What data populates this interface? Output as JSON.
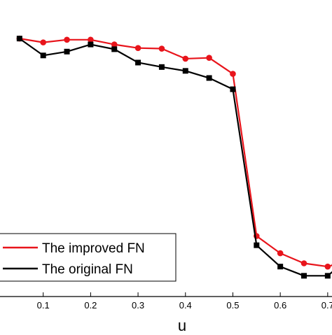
{
  "chart_data": {
    "type": "line",
    "xlabel": "u",
    "xlim": [
      0.0,
      0.715
    ],
    "ylim": [
      0.0,
      1.0
    ],
    "x_ticks": [
      "0.1",
      "0.2",
      "0.3",
      "0.4",
      "0.5",
      "0.6",
      "0.7"
    ],
    "series": [
      {
        "name": "The improved FN",
        "color": "#e8141b",
        "marker": "circle",
        "x": [
          0.05,
          0.1,
          0.15,
          0.2,
          0.25,
          0.3,
          0.35,
          0.4,
          0.45,
          0.5,
          0.55,
          0.6,
          0.65,
          0.7,
          0.715
        ],
        "y": [
          0.87,
          0.857,
          0.866,
          0.866,
          0.85,
          0.838,
          0.836,
          0.802,
          0.805,
          0.751,
          0.204,
          0.146,
          0.112,
          0.101,
          0.108
        ]
      },
      {
        "name": "The original FN",
        "color": "#000000",
        "marker": "square",
        "x": [
          0.05,
          0.1,
          0.15,
          0.2,
          0.25,
          0.3,
          0.35,
          0.4,
          0.45,
          0.5,
          0.55,
          0.6,
          0.65,
          0.7,
          0.715
        ],
        "y": [
          0.87,
          0.813,
          0.826,
          0.85,
          0.834,
          0.789,
          0.774,
          0.761,
          0.737,
          0.699,
          0.173,
          0.101,
          0.07,
          0.07,
          0.09
        ]
      }
    ],
    "legend": {
      "position": "bottom-left"
    }
  }
}
